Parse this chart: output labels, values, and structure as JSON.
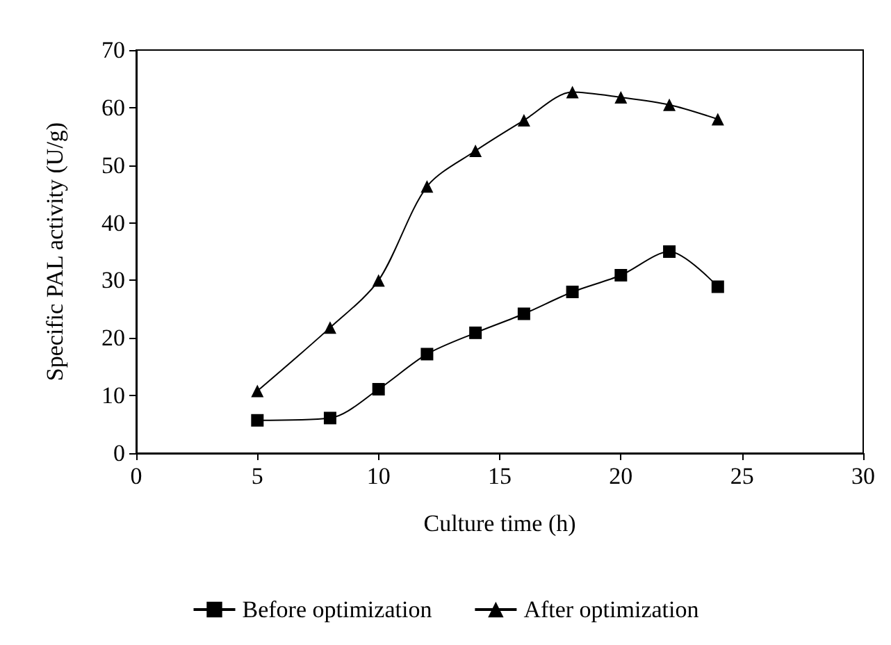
{
  "chart_data": {
    "type": "line",
    "xlabel": "Culture time (h)",
    "ylabel": "Specific PAL activity (U/g)",
    "x": [
      5,
      8,
      10,
      12,
      14,
      16,
      18,
      20,
      22,
      24
    ],
    "series": [
      {
        "name": "Before optimization",
        "color": "#000000",
        "marker": "square",
        "values": [
          5.7,
          6.1,
          11.1,
          17.2,
          20.9,
          24.2,
          28.0,
          30.9,
          35.0,
          28.9
        ]
      },
      {
        "name": "After optimization",
        "color": "#000000",
        "marker": "triangle",
        "values": [
          10.8,
          21.8,
          30.0,
          46.3,
          52.5,
          57.8,
          62.7,
          61.8,
          60.5,
          58.0
        ]
      }
    ],
    "xlim": [
      0,
      30
    ],
    "xticks": [
      0,
      5,
      10,
      15,
      20,
      25,
      30
    ],
    "ylim": [
      0,
      70
    ],
    "yticks": [
      0,
      10,
      20,
      30,
      40,
      50,
      60,
      70
    ],
    "grid": false,
    "legend": "bottom",
    "line_style": "solid"
  }
}
